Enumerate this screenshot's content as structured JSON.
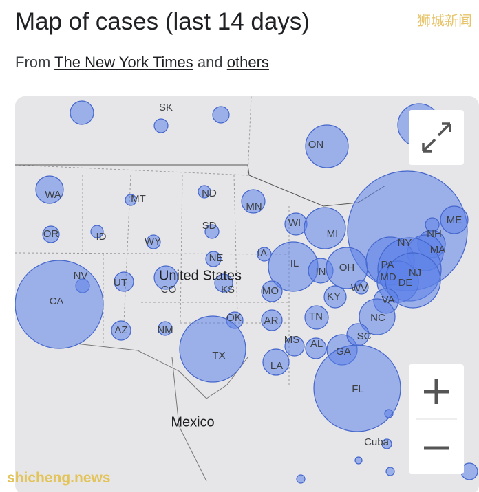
{
  "header": {
    "title": "Map of cases (last 14 days)",
    "source_prefix": "From",
    "source_link_1": "The New York Times",
    "source_joiner": "and",
    "source_link_2": "others"
  },
  "map": {
    "labels": [
      "SK",
      "ON",
      "WA",
      "MT",
      "ND",
      "MN",
      "ME",
      "NH",
      "OR",
      "ID",
      "WY",
      "SD",
      "WI",
      "MI",
      "NY",
      "MA",
      "NE",
      "IA",
      "IL",
      "PA",
      "OH",
      "IN",
      "NJ",
      "MD",
      "DE",
      "NV",
      "UT",
      "United States",
      "CO",
      "KS",
      "MO",
      "KY",
      "WV",
      "VA",
      "CA",
      "OK",
      "AR",
      "TN",
      "NC",
      "AZ",
      "NM",
      "SC",
      "MS",
      "AL",
      "GA",
      "TX",
      "LA",
      "FL",
      "Mexico",
      "Cuba"
    ]
  },
  "watermarks": [
    "狮城新闻",
    "shicheng.news"
  ]
}
